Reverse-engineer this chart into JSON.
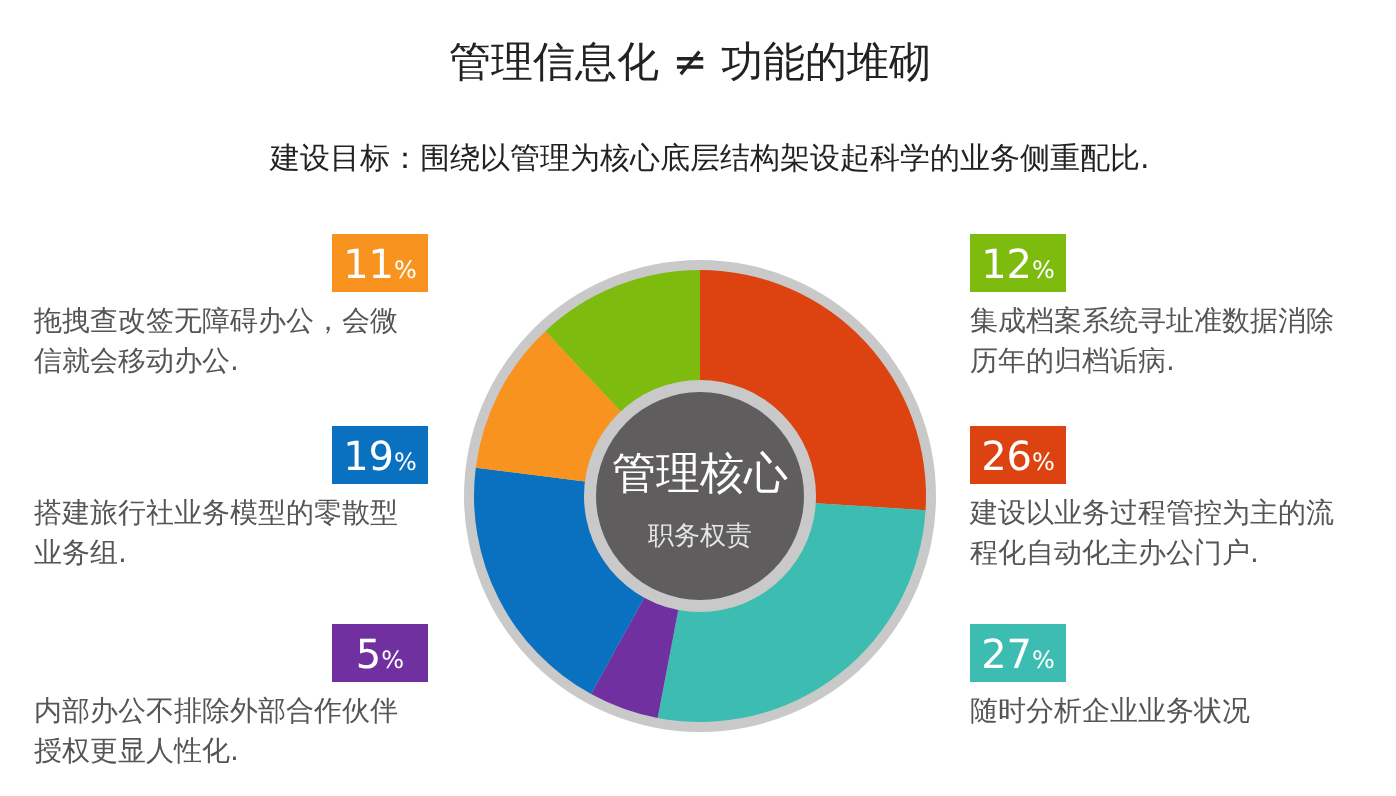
{
  "chart_data": {
    "type": "donut",
    "title": "管理信息化 ≠ 功能的堆砌",
    "subtitle": "建设目标：围绕以管理为核心底层结构架设起科学的业务侧重配比.",
    "categories": [
      "集成档案系统寻址准数据消除历年的归档诟病.",
      "建设以业务过程管控为主的流程化自动化主办公门户.",
      "随时分析企业业务状况",
      "内部办公不排除外部合作伙伴授权更显人性化.",
      "搭建旅行社业务模型的零散型业务组.",
      "拖拽查改签无障碍办公，会微信就会移动办公."
    ],
    "values": [
      12,
      26,
      27,
      5,
      19,
      11
    ],
    "value_labels": [
      "12%",
      "26%",
      "27%",
      "5%",
      "19%",
      "11%"
    ],
    "colors": [
      "#7dbb0f",
      "#dd4211",
      "#3dbdb1",
      "#7030a0",
      "#0a70c0",
      "#f7931e"
    ],
    "annotations": [
      "管理核心",
      "职务权责"
    ],
    "legend": "left right"
  }
}
